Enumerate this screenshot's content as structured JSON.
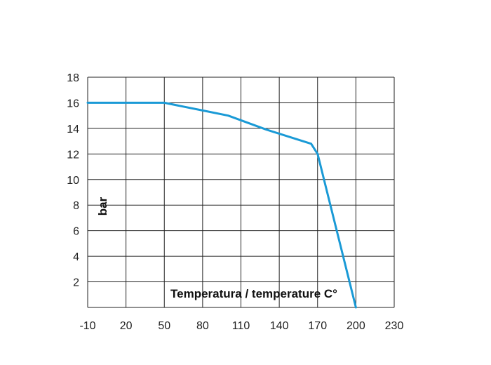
{
  "chart_data": {
    "type": "line",
    "title": "",
    "xlabel": "Temperatura / temperature C°",
    "ylabel": "bar",
    "x_tick_labels": [
      "-10",
      "20",
      "50",
      "80",
      "110",
      "140",
      "170",
      "200",
      "230"
    ],
    "y_tick_labels": [
      "2",
      "4",
      "6",
      "8",
      "10",
      "12",
      "14",
      "16",
      "18"
    ],
    "ylim": [
      0,
      18
    ],
    "grid": true,
    "series": [
      {
        "color": "#1a9ad6",
        "x": [
          -10,
          50,
          80,
          100,
          130,
          165,
          170,
          200
        ],
        "y": [
          16,
          16,
          15.4,
          15,
          13.9,
          12.8,
          12,
          0
        ]
      }
    ]
  }
}
